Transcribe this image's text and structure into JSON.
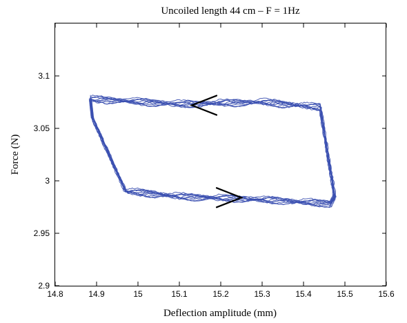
{
  "chart_data": {
    "type": "line",
    "title": "Uncoiled length 44 cm – F = 1Hz",
    "xlabel": "Deflection amplitude (mm)",
    "ylabel": "Force (N)",
    "xlim": [
      14.8,
      15.6
    ],
    "ylim": [
      2.9,
      3.15
    ],
    "xticks": [
      14.8,
      14.9,
      15.0,
      15.1,
      15.2,
      15.3,
      15.4,
      15.5,
      15.6
    ],
    "xtick_labels": [
      "14.8",
      "14.9",
      "15",
      "15.1",
      "15.2",
      "15.3",
      "15.4",
      "15.5",
      "15.6"
    ],
    "yticks": [
      2.9,
      2.95,
      3.0,
      3.05,
      3.1
    ],
    "ytick_labels": [
      "2.9",
      "2.95",
      "3",
      "3.05",
      "3.1"
    ],
    "grid": false,
    "series_color": "#3a4fb0",
    "cycles": 10,
    "loop_outline": {
      "x": [
        14.885,
        14.89,
        14.97,
        15.1,
        15.3,
        15.465,
        15.475,
        15.44,
        15.3,
        15.1,
        14.885
      ],
      "y": [
        3.078,
        3.06,
        2.99,
        2.985,
        2.982,
        2.978,
        2.985,
        3.07,
        3.075,
        3.073,
        3.078
      ]
    },
    "annotations": [
      {
        "type": "arrow",
        "direction": "left",
        "x": 15.13,
        "y": 3.072,
        "color": "#000000"
      },
      {
        "type": "arrow",
        "direction": "right",
        "x": 15.25,
        "y": 2.984,
        "color": "#000000"
      }
    ]
  }
}
